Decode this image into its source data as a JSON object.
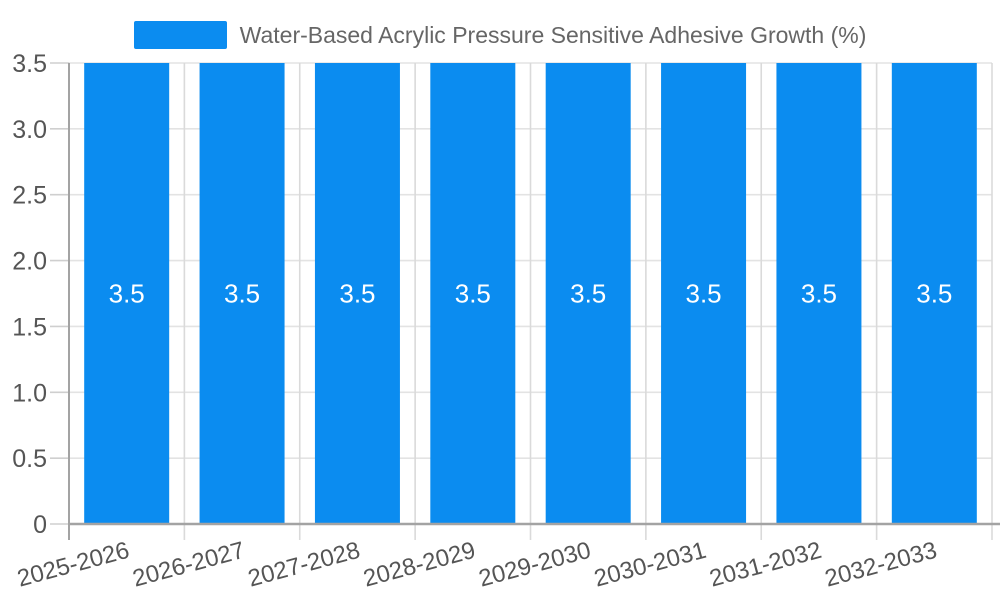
{
  "chart_data": {
    "type": "bar",
    "title": "",
    "legend": {
      "label": "Water-Based Acrylic Pressure Sensitive Adhesive Growth (%)",
      "position": "top-center"
    },
    "categories": [
      "2025-2026",
      "2026-2027",
      "2027-2028",
      "2028-2029",
      "2029-2030",
      "2030-2031",
      "2031-2032",
      "2032-2033"
    ],
    "series": [
      {
        "name": "Water-Based Acrylic Pressure Sensitive Adhesive Growth (%)",
        "values": [
          3.5,
          3.5,
          3.5,
          3.5,
          3.5,
          3.5,
          3.5,
          3.5
        ],
        "value_labels": [
          "3.5",
          "3.5",
          "3.5",
          "3.5",
          "3.5",
          "3.5",
          "3.5",
          "3.5"
        ]
      }
    ],
    "xlabel": "",
    "ylabel": "",
    "ylim": [
      0,
      3.5
    ],
    "yticks": [
      {
        "value": 0,
        "label": "0"
      },
      {
        "value": 0.5,
        "label": "0.5"
      },
      {
        "value": 1,
        "label": "1.0"
      },
      {
        "value": 1.5,
        "label": "1.5"
      },
      {
        "value": 2,
        "label": "2.0"
      },
      {
        "value": 2.5,
        "label": "2.5"
      },
      {
        "value": 3,
        "label": "3.0"
      },
      {
        "value": 3.5,
        "label": "3.5"
      }
    ],
    "grid": true,
    "x_label_rotation_deg": 15,
    "legend_position": "top",
    "colors": {
      "bar": "#0b8cf0",
      "grid_horizontal": "#e3e3e3",
      "grid_vertical": "#dadada",
      "axis_line": "#a3a3a3",
      "tick": "#cfcfcf",
      "axis_text": "#555555",
      "legend_text": "#666666",
      "bar_label_text": "#ffffff",
      "background": "#ffffff"
    }
  }
}
